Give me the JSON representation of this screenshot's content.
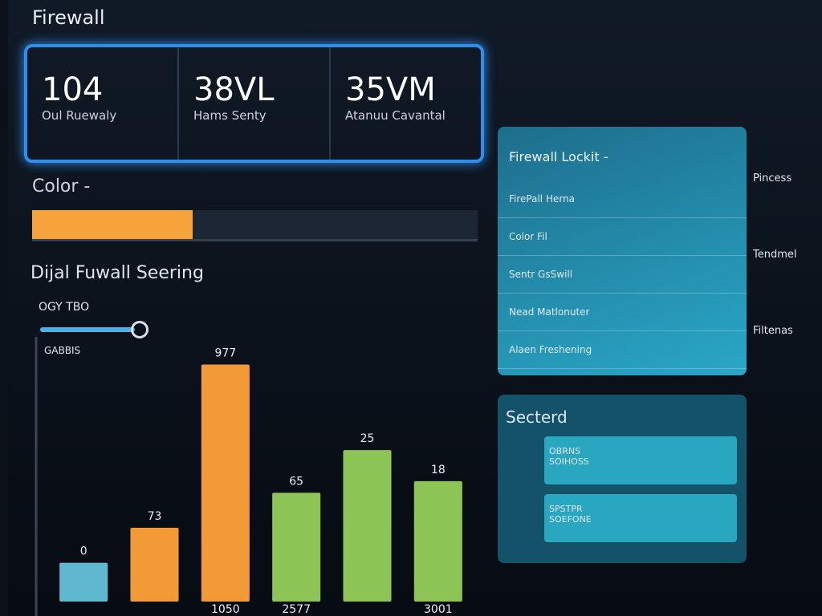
{
  "header": {
    "title": "Firewall"
  },
  "stats": [
    {
      "value": "104",
      "label": "Oul Ruewaly"
    },
    {
      "value": "38VL",
      "label": "Hams Senty"
    },
    {
      "value": "35VM",
      "label": "Atanuu Cavantal"
    }
  ],
  "progress": {
    "label": "Color -",
    "value": 36,
    "range": [
      0,
      100
    ],
    "color": "#f5a33a"
  },
  "section": {
    "title": "Dijal Fuwall Seering",
    "filter_label": "OGY TBO",
    "filter_sub": "GABBIS"
  },
  "chart_data": {
    "type": "bar",
    "categories": [
      null,
      null,
      "1050",
      "2577",
      null,
      "3001"
    ],
    "values": [
      50,
      95,
      305,
      140,
      195,
      155
    ],
    "annotations": [
      "0",
      "73",
      "977",
      "65",
      "25",
      "18"
    ],
    "colors": [
      "#5fb8d0",
      "#f29a35",
      "#f29a35",
      "#8cc455",
      "#8cc455",
      "#8cc455"
    ],
    "ylim": [
      0,
      320
    ]
  },
  "panel": {
    "title": "Firewall Lockit -",
    "rows": [
      "FirePall Herna",
      "Color Fil",
      "Sentr GsSwill",
      "Nead Matlonuter",
      "Alaen Freshening"
    ]
  },
  "selected": {
    "title": "Secterd",
    "items": [
      {
        "line1": "OBRNS",
        "line2": "SOIHOSS"
      },
      {
        "line1": "SPSTPR",
        "line2": "SOEFONE"
      }
    ]
  },
  "sidebar": [
    "Pincess",
    "Tendmel",
    "Filtenas"
  ]
}
